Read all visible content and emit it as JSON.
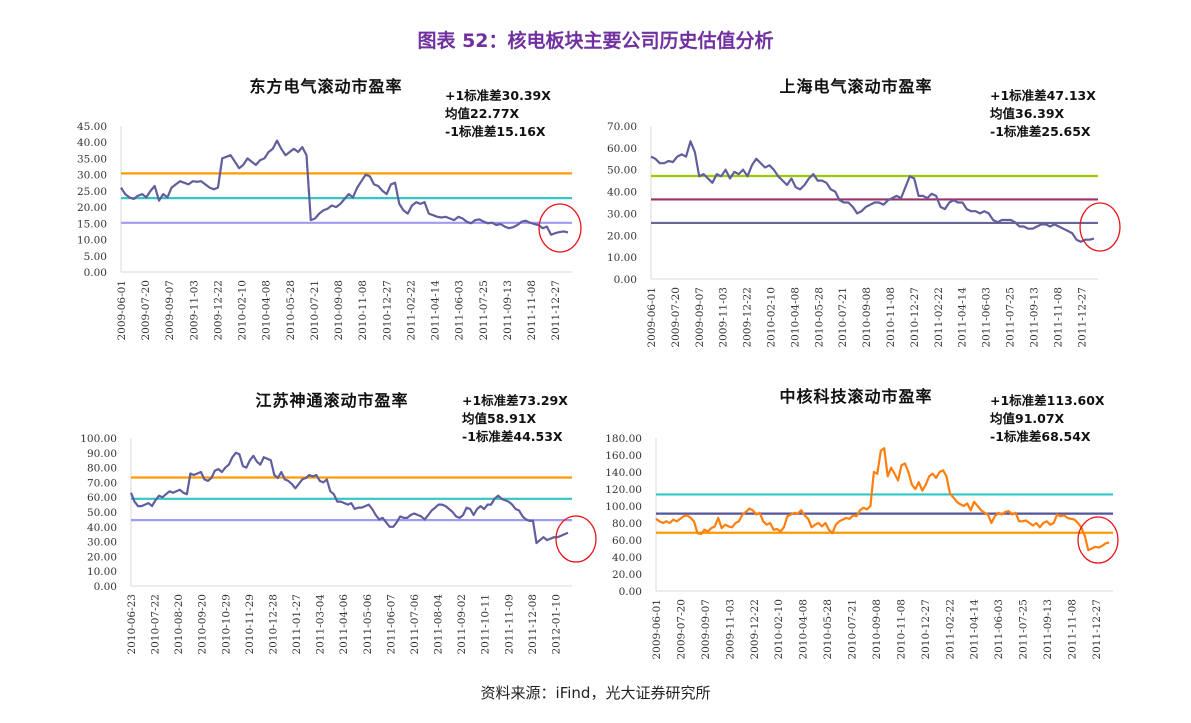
{
  "title": "图表 52：核电板块主要公司历史估值分析",
  "source": "资料来源：iFind，光大证券研究所",
  "chart_data": [
    {
      "type": "line",
      "title": "东方电气滚动市盈率",
      "annotations": [
        "+1标准差30.39X",
        "均值22.77X",
        "-1标准差15.16X"
      ],
      "ylim": [
        0,
        45
      ],
      "yticks": [
        "0.00",
        "5.00",
        "10.00",
        "15.00",
        "20.00",
        "25.00",
        "30.00",
        "35.00",
        "40.00",
        "45.00"
      ],
      "ytick_values": [
        0,
        5,
        10,
        15,
        20,
        25,
        30,
        35,
        40,
        45
      ],
      "xticks": [
        "2009-06-01",
        "2009-07-20",
        "2009-09-07",
        "2009-11-03",
        "2009-12-22",
        "2010-02-10",
        "2010-04-08",
        "2010-05-28",
        "2010-07-21",
        "2010-09-08",
        "2010-11-08",
        "2010-12-27",
        "2011-02-22",
        "2011-04-14",
        "2011-06-03",
        "2011-07-25",
        "2011-09-13",
        "2011-11-08",
        "2011-12-27"
      ],
      "ref_lines": [
        {
          "name": "+1 std",
          "value": 30.39,
          "color": "#ff9a00"
        },
        {
          "name": "mean",
          "value": 22.77,
          "color": "#33c6c6"
        },
        {
          "name": "-1 std",
          "value": 15.16,
          "color": "#a09cf2"
        }
      ],
      "series": [
        {
          "name": "PE TTM",
          "color": "#605e9c",
          "values": [
            26,
            24,
            23,
            22.5,
            23.5,
            24,
            23,
            25,
            26.5,
            22,
            24,
            23,
            26,
            27,
            28,
            27.5,
            27,
            28,
            27.8,
            28,
            27,
            26,
            25.5,
            26,
            35,
            35.5,
            36,
            34,
            32,
            33,
            35,
            34,
            33,
            34.5,
            35,
            37,
            38,
            40.5,
            38,
            36,
            37,
            38,
            37,
            38.5,
            36,
            16,
            16.5,
            18,
            19,
            19.5,
            20.5,
            20,
            21,
            22.5,
            24,
            23,
            26,
            28,
            30,
            29.5,
            27,
            26.5,
            25,
            24,
            27,
            27.5,
            21,
            19,
            18,
            20.5,
            21.5,
            21,
            21.5,
            18,
            17.5,
            17,
            16.8,
            17,
            16.5,
            16,
            17,
            16.5,
            15.5,
            15,
            16,
            16.2,
            15.5,
            15,
            15.2,
            14.5,
            14.8,
            14,
            13.5,
            13.8,
            14.5,
            15.5,
            15.8,
            15.2,
            14.8,
            14.5,
            13.5,
            14,
            11.5,
            12,
            12.3,
            12.5,
            12.2
          ]
        }
      ]
    },
    {
      "type": "line",
      "title": "上海电气滚动市盈率",
      "annotations": [
        "+1标准差47.13X",
        "均值36.39X",
        "-1标准差25.65X"
      ],
      "ylim": [
        0,
        70
      ],
      "yticks": [
        "0.00",
        "10.00",
        "20.00",
        "30.00",
        "40.00",
        "50.00",
        "60.00",
        "70.00"
      ],
      "ytick_values": [
        0,
        10,
        20,
        30,
        40,
        50,
        60,
        70
      ],
      "xticks": [
        "2009-06-01",
        "2009-07-20",
        "2009-09-07",
        "2009-11-03",
        "2009-12-22",
        "2010-02-10",
        "2010-04-08",
        "2010-05-28",
        "2010-07-21",
        "2010-09-08",
        "2010-11-08",
        "2010-12-27",
        "2011-02-22",
        "2011-04-14",
        "2011-06-03",
        "2011-07-25",
        "2011-09-13",
        "2011-11-08",
        "2011-12-27"
      ],
      "ref_lines": [
        {
          "name": "+1 std",
          "value": 47.13,
          "color": "#99cc00"
        },
        {
          "name": "mean",
          "value": 36.39,
          "color": "#993366"
        },
        {
          "name": "-1 std",
          "value": 25.65,
          "color": "#666699"
        }
      ],
      "series": [
        {
          "name": "PE TTM",
          "color": "#605e9c",
          "values": [
            56,
            55,
            53,
            53,
            54,
            53.5,
            56,
            57,
            56,
            63,
            58,
            47,
            48,
            46,
            44,
            48,
            47,
            50,
            46,
            49,
            48,
            50,
            47,
            52,
            55,
            53,
            51,
            52,
            50,
            47,
            45,
            43,
            46,
            42,
            41,
            43,
            46,
            48,
            45,
            45,
            44,
            41,
            40,
            36,
            35,
            35,
            33,
            30,
            31,
            33,
            34,
            35,
            35,
            34,
            36,
            37,
            38,
            37,
            42,
            47,
            46,
            38,
            38,
            37,
            39,
            38,
            33,
            32,
            35,
            36,
            35,
            35,
            32,
            31,
            31,
            30,
            31,
            30,
            27,
            26,
            27,
            27,
            27,
            26,
            24,
            24,
            23,
            23,
            24,
            25,
            25,
            24,
            25,
            24,
            23,
            22,
            21,
            18,
            17,
            18,
            18,
            18.5
          ]
        }
      ]
    },
    {
      "type": "line",
      "title": "江苏神通滚动市盈率",
      "annotations": [
        "+1标准差73.29X",
        "均值58.91X",
        "-1标准差44.53X"
      ],
      "ylim": [
        0,
        100
      ],
      "yticks": [
        "0.00",
        "10.00",
        "20.00",
        "30.00",
        "40.00",
        "50.00",
        "60.00",
        "70.00",
        "80.00",
        "90.00",
        "100.00"
      ],
      "ytick_values": [
        0,
        10,
        20,
        30,
        40,
        50,
        60,
        70,
        80,
        90,
        100
      ],
      "xticks": [
        "2010-06-23",
        "2010-07-22",
        "2010-08-20",
        "2010-09-20",
        "2010-10-29",
        "2010-11-29",
        "2010-12-28",
        "2011-01-27",
        "2011-03-04",
        "2011-04-06",
        "2011-05-06",
        "2011-06-07",
        "2011-07-06",
        "2011-08-04",
        "2011-09-02",
        "2011-10-11",
        "2011-11-09",
        "2011-12-08",
        "2012-01-10"
      ],
      "ref_lines": [
        {
          "name": "+1 std",
          "value": 73.29,
          "color": "#ff9a00"
        },
        {
          "name": "mean",
          "value": 58.91,
          "color": "#33c6c6"
        },
        {
          "name": "-1 std",
          "value": 44.53,
          "color": "#a09cf2"
        }
      ],
      "series": [
        {
          "name": "PE TTM",
          "color": "#605e9c",
          "values": [
            63,
            57,
            54,
            54,
            55,
            56,
            54,
            58,
            61,
            60,
            62,
            64,
            63,
            64,
            65,
            63,
            62,
            76,
            75,
            76,
            77,
            72,
            71,
            73,
            78,
            79,
            77,
            80,
            82,
            87,
            90,
            89,
            81,
            80,
            85,
            88,
            84,
            82,
            87,
            86,
            85,
            75,
            73,
            77,
            72,
            71,
            69,
            66,
            69,
            72,
            73,
            75,
            74,
            75,
            71,
            70,
            72,
            64,
            62,
            57,
            57,
            56,
            55,
            56,
            52,
            53,
            53,
            54,
            55,
            52,
            48,
            45,
            46,
            43,
            40,
            40,
            43,
            47,
            46,
            46,
            48,
            49,
            48,
            47,
            45,
            48,
            51,
            53,
            55,
            55,
            54,
            52,
            50,
            47,
            46,
            48,
            53,
            52,
            48,
            52,
            54,
            52,
            55,
            55,
            59,
            61,
            59,
            58,
            57,
            55,
            52,
            51,
            47,
            45,
            44,
            44,
            29,
            31,
            33,
            31,
            32,
            33,
            33,
            34,
            35,
            36
          ]
        }
      ]
    },
    {
      "type": "line",
      "title": "中核科技滚动市盈率",
      "annotations": [
        "+1标准差113.60X",
        "均值91.07X",
        "-1标准差68.54X"
      ],
      "ylim": [
        0,
        180
      ],
      "yticks": [
        "0.00",
        "20.00",
        "40.00",
        "60.00",
        "80.00",
        "100.00",
        "120.00",
        "140.00",
        "160.00",
        "180.00"
      ],
      "ytick_values": [
        0,
        20,
        40,
        60,
        80,
        100,
        120,
        140,
        160,
        180
      ],
      "xticks": [
        "2009-06-01",
        "2009-07-20",
        "2009-09-07",
        "2009-11-03",
        "2009-12-22",
        "2010-02-10",
        "2010-04-08",
        "2010-05-28",
        "2010-07-21",
        "2010-09-08",
        "2010-11-08",
        "2010-12-27",
        "2011-02-22",
        "2011-04-14",
        "2011-06-03",
        "2011-07-25",
        "2011-09-13",
        "2011-11-08",
        "2011-12-27"
      ],
      "ref_lines": [
        {
          "name": "+1 std",
          "value": 113.6,
          "color": "#33c6c6"
        },
        {
          "name": "mean",
          "value": 91.07,
          "color": "#55559a"
        },
        {
          "name": "-1 std",
          "value": 68.54,
          "color": "#ff9a00"
        }
      ],
      "series": [
        {
          "name": "PE TTM",
          "color": "#ff7f0e",
          "values": [
            85,
            82,
            80,
            82,
            80,
            84,
            82,
            85,
            88,
            89,
            86,
            82,
            68,
            67,
            72,
            70,
            74,
            76,
            86,
            74,
            78,
            76,
            75,
            80,
            82,
            90,
            93,
            97,
            95,
            90,
            92,
            82,
            78,
            80,
            72,
            73,
            70,
            75,
            88,
            90,
            92,
            91,
            95,
            89,
            85,
            75,
            78,
            80,
            76,
            80,
            72,
            68,
            78,
            82,
            84,
            86,
            85,
            89,
            88,
            95,
            98,
            96,
            100,
            140,
            138,
            165,
            168,
            135,
            145,
            138,
            130,
            148,
            150,
            140,
            125,
            120,
            128,
            118,
            125,
            135,
            138,
            133,
            140,
            142,
            135,
            115,
            110,
            105,
            102,
            100,
            103,
            95,
            105,
            100,
            95,
            92,
            90,
            80,
            88,
            92,
            90,
            93,
            94,
            90,
            92,
            82,
            82,
            83,
            80,
            77,
            80,
            75,
            80,
            82,
            78,
            80,
            90,
            88,
            89,
            86,
            85,
            84,
            80,
            75,
            65,
            48,
            50,
            52,
            51,
            53,
            56,
            57
          ]
        }
      ]
    }
  ]
}
